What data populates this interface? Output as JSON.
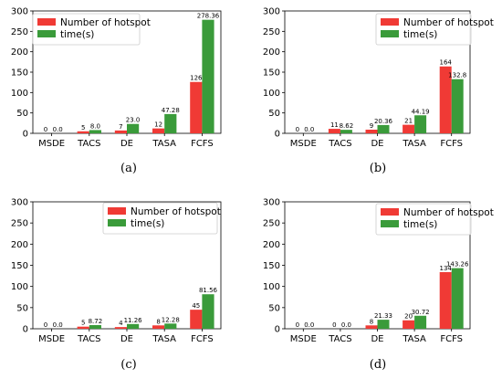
{
  "colors": {
    "hotspot": "#f03a35",
    "time": "#3a9b3a"
  },
  "chart_data": [
    {
      "type": "bar",
      "caption": "(a)",
      "categories": [
        "MSDE",
        "TACS",
        "DE",
        "TASA",
        "FCFS"
      ],
      "series": [
        {
          "name": "Number of hotspot",
          "values": [
            0,
            5,
            7,
            12,
            126
          ],
          "labels": [
            "0",
            "5",
            "7",
            "12",
            "126"
          ]
        },
        {
          "name": "time(s)",
          "values": [
            0.0,
            8.0,
            23.0,
            47.28,
            278.36
          ],
          "labels": [
            "0.0",
            "8.0",
            "23.0",
            "47.28",
            "278.36"
          ]
        }
      ],
      "ylim": [
        0,
        300
      ],
      "yticks": [
        0,
        50,
        100,
        150,
        200,
        250,
        300
      ],
      "ytick_labels": [
        "0",
        "50",
        "100",
        "150",
        "200",
        "250",
        "300"
      ],
      "legend": "top-left"
    },
    {
      "type": "bar",
      "caption": "(b)",
      "categories": [
        "MSDE",
        "TACS",
        "DE",
        "TASA",
        "FCFS"
      ],
      "series": [
        {
          "name": "Number of hotspot",
          "values": [
            0,
            11,
            9,
            21,
            164
          ],
          "labels": [
            "0",
            "11",
            "9",
            "21",
            "164"
          ]
        },
        {
          "name": "time(s)",
          "values": [
            0.0,
            8.62,
            20.36,
            44.19,
            132.8
          ],
          "labels": [
            "0.0",
            "8.62",
            "20.36",
            "44.19",
            "132.8"
          ]
        }
      ],
      "ylim": [
        0,
        300
      ],
      "yticks": [
        0,
        50,
        100,
        150,
        200,
        250,
        300
      ],
      "ytick_labels": [
        "0",
        "50",
        "100",
        "150",
        "200",
        "250",
        "300"
      ],
      "legend": "top-right"
    },
    {
      "type": "bar",
      "caption": "(c)",
      "categories": [
        "MSDE",
        "TACS",
        "DE",
        "TASA",
        "FCFS"
      ],
      "series": [
        {
          "name": "Number of hotspot",
          "values": [
            0,
            5,
            4,
            8,
            45
          ],
          "labels": [
            "0",
            "5",
            "4",
            "8",
            "45"
          ]
        },
        {
          "name": "time(s)",
          "values": [
            0.0,
            8.72,
            11.26,
            12.28,
            81.56
          ],
          "labels": [
            "0.0",
            "8.72",
            "11.26",
            "12.28",
            "81.56"
          ]
        }
      ],
      "ylim": [
        0,
        300
      ],
      "yticks": [
        0,
        50,
        100,
        150,
        200,
        250,
        300
      ],
      "ytick_labels": [
        "0",
        "50",
        "100",
        "150",
        "200",
        "250",
        "300"
      ],
      "legend": "top-right"
    },
    {
      "type": "bar",
      "caption": "(d)",
      "categories": [
        "MSDE",
        "TACS",
        "DE",
        "TASA",
        "FCFS"
      ],
      "series": [
        {
          "name": "Number of hotspot",
          "values": [
            0,
            0,
            8,
            20,
            134
          ],
          "labels": [
            "0",
            "0",
            "8",
            "20",
            "134"
          ]
        },
        {
          "name": "time(s)",
          "values": [
            0.0,
            0.0,
            21.33,
            30.72,
            143.26
          ],
          "labels": [
            "0.0",
            "0.0",
            "21.33",
            "30.72",
            "143.26"
          ]
        }
      ],
      "ylim": [
        0,
        300
      ],
      "yticks": [
        0,
        50,
        100,
        150,
        200,
        250,
        300
      ],
      "ytick_labels": [
        "0",
        "50",
        "100",
        "150",
        "200",
        "250",
        "300"
      ],
      "legend": "top-right"
    }
  ]
}
